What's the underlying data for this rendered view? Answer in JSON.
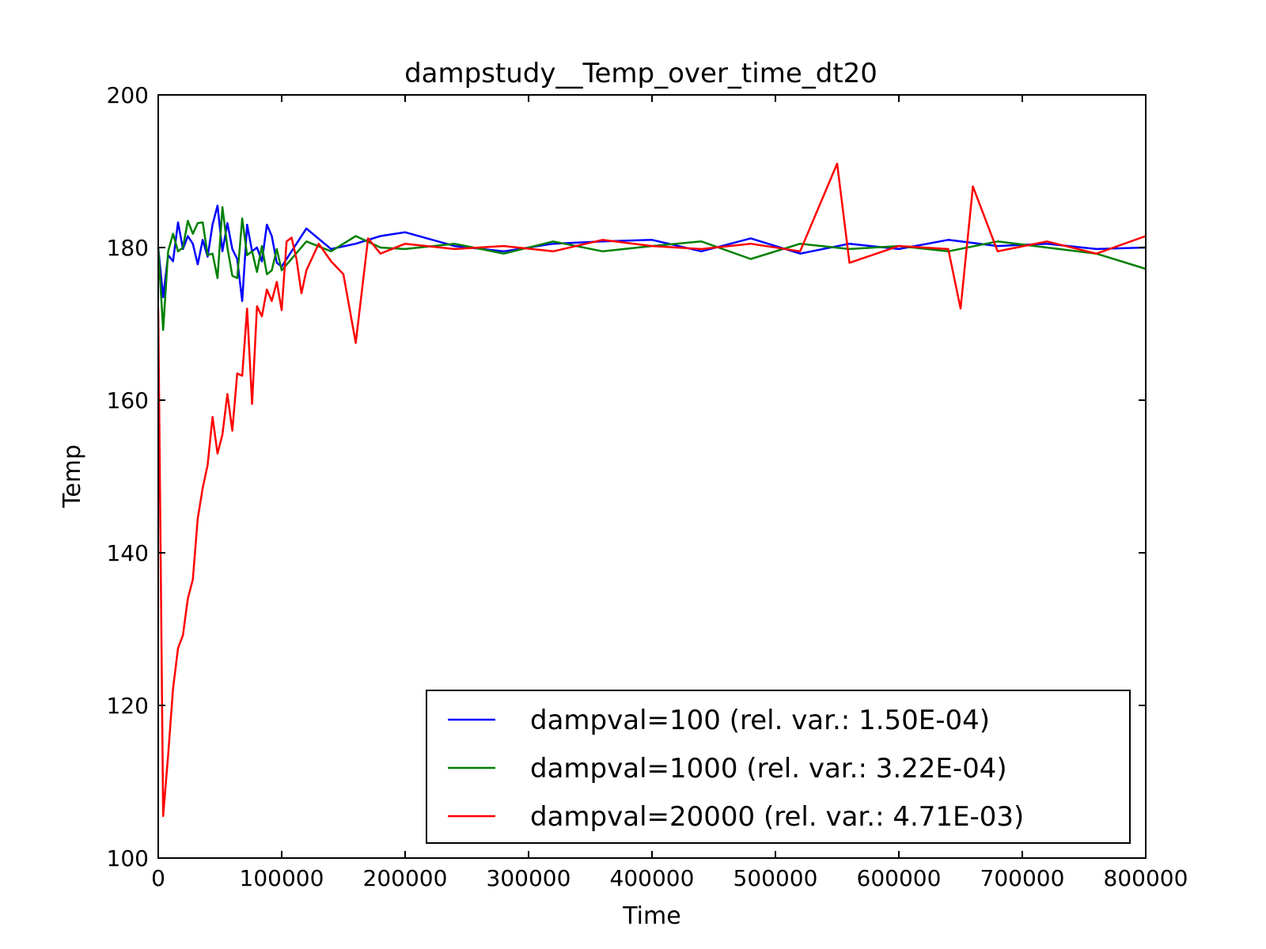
{
  "chart_data": {
    "type": "line",
    "title": "dampstudy__Temp_over_time_dt20",
    "xlabel": "Time",
    "ylabel": "Temp",
    "xlim": [
      0,
      800000
    ],
    "ylim": [
      100,
      200
    ],
    "xticks": [
      0,
      100000,
      200000,
      300000,
      400000,
      500000,
      600000,
      700000,
      800000
    ],
    "yticks": [
      100,
      120,
      140,
      160,
      180,
      200
    ],
    "grid": false,
    "legend_position": "lower-right",
    "series": [
      {
        "name": "dampval=100 (rel. var.: 1.50E-04)",
        "color": "#0000ff",
        "x": [
          0,
          4000,
          8000,
          12000,
          16000,
          20000,
          24000,
          28000,
          32000,
          36000,
          40000,
          44000,
          48000,
          52000,
          56000,
          60000,
          64000,
          68000,
          72000,
          76000,
          80000,
          84000,
          88000,
          92000,
          96000,
          100000,
          120000,
          140000,
          160000,
          180000,
          200000,
          240000,
          280000,
          320000,
          360000,
          400000,
          440000,
          480000,
          520000,
          560000,
          600000,
          640000,
          680000,
          720000,
          760000,
          800000
        ],
        "y": [
          180,
          173.5,
          179,
          178.2,
          183.3,
          179.8,
          181.5,
          180.5,
          177.8,
          181,
          178.8,
          183,
          185.5,
          179.5,
          183.2,
          179.8,
          178.5,
          173,
          183,
          179.5,
          180,
          178.2,
          183,
          181.5,
          178,
          177.5,
          182.5,
          179.8,
          180.5,
          181.5,
          182,
          180.2,
          179.5,
          180.5,
          180.8,
          181,
          179.5,
          181.2,
          179.2,
          180.5,
          179.8,
          181,
          180.2,
          180.5,
          179.8,
          180
        ]
      },
      {
        "name": "dampval=1000 (rel. var.: 3.22E-04)",
        "color": "#008000",
        "x": [
          0,
          4000,
          8000,
          12000,
          16000,
          20000,
          24000,
          28000,
          32000,
          36000,
          40000,
          44000,
          48000,
          52000,
          56000,
          60000,
          64000,
          68000,
          72000,
          76000,
          80000,
          84000,
          88000,
          92000,
          96000,
          100000,
          120000,
          140000,
          160000,
          180000,
          200000,
          240000,
          280000,
          320000,
          360000,
          400000,
          440000,
          480000,
          520000,
          560000,
          600000,
          640000,
          680000,
          720000,
          760000,
          800000
        ],
        "y": [
          180,
          169.2,
          179.5,
          181.8,
          179.5,
          180,
          183.5,
          181.8,
          183.2,
          183.3,
          179,
          179.2,
          176,
          185.3,
          180,
          176.3,
          176,
          183.8,
          179,
          179.5,
          176.8,
          180.2,
          176.5,
          177,
          179.8,
          177,
          180.8,
          179.5,
          181.5,
          180,
          179.8,
          180.5,
          179.2,
          180.8,
          179.5,
          180.2,
          180.8,
          178.5,
          180.5,
          179.8,
          180.2,
          179.5,
          180.8,
          180,
          179.2,
          177.2
        ]
      },
      {
        "name": "dampval=20000 (rel. var.: 4.71E-03)",
        "color": "#ff0000",
        "x": [
          0,
          4000,
          8000,
          12000,
          16000,
          20000,
          24000,
          28000,
          32000,
          36000,
          40000,
          44000,
          48000,
          52000,
          56000,
          60000,
          64000,
          68000,
          72000,
          76000,
          80000,
          84000,
          88000,
          92000,
          96000,
          100000,
          104000,
          108000,
          112000,
          116000,
          120000,
          130000,
          140000,
          150000,
          160000,
          170000,
          180000,
          200000,
          240000,
          280000,
          320000,
          360000,
          400000,
          440000,
          480000,
          520000,
          550000,
          560000,
          600000,
          640000,
          650000,
          660000,
          680000,
          720000,
          760000,
          800000
        ],
        "y": [
          172,
          105.5,
          113.5,
          122.2,
          127.5,
          129.2,
          134,
          136.5,
          144.5,
          148.5,
          151.5,
          157.8,
          153,
          155.5,
          160.8,
          156,
          163.5,
          163.2,
          172,
          159.5,
          172.3,
          171,
          174.5,
          173,
          175.5,
          171.8,
          180.8,
          181.3,
          178.5,
          174,
          177,
          180.5,
          178.2,
          176.5,
          167.5,
          181.2,
          179.2,
          180.5,
          179.8,
          180.2,
          179.5,
          181,
          180.2,
          179.8,
          180.5,
          179.5,
          191,
          178,
          180.2,
          179.8,
          172,
          188,
          179.5,
          180.8,
          179.2,
          181.5
        ]
      }
    ]
  }
}
